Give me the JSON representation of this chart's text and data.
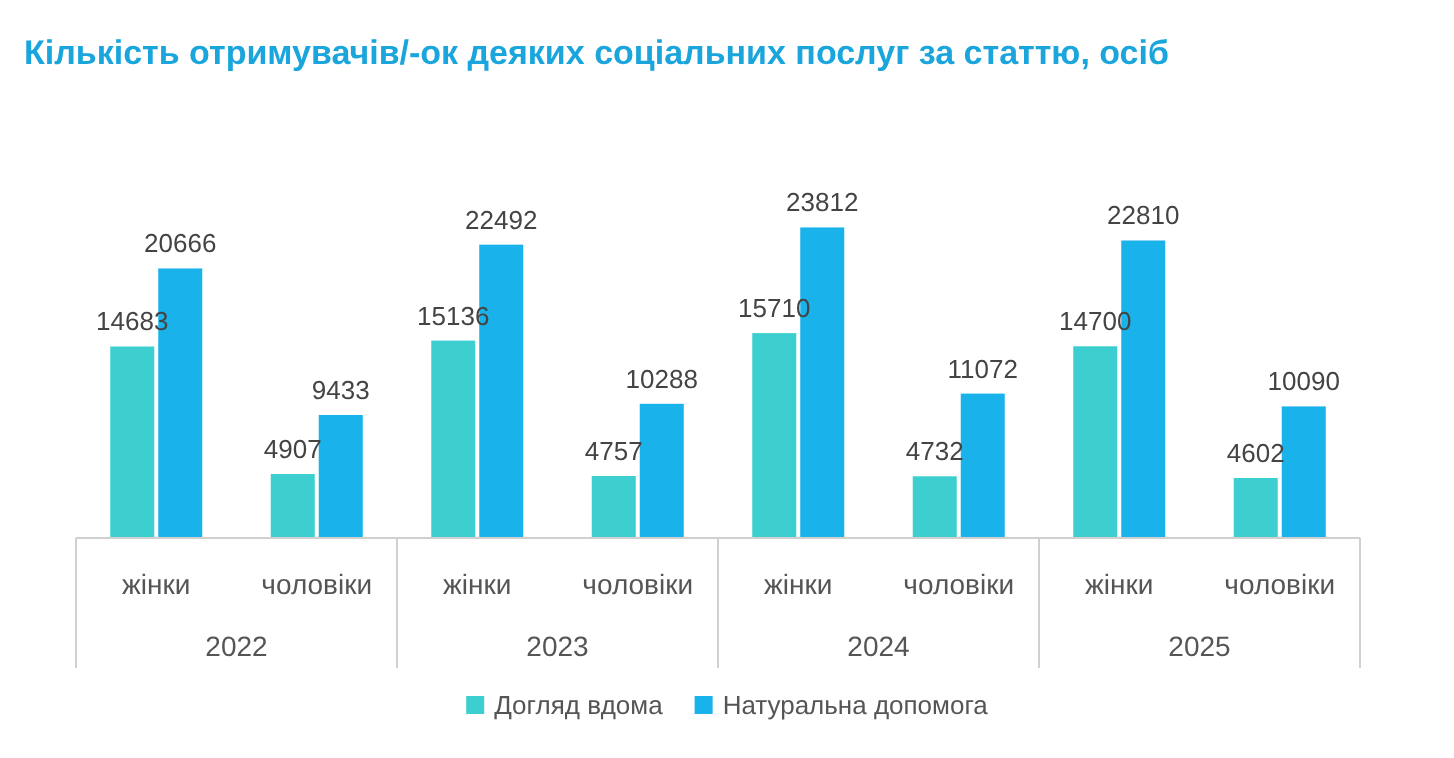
{
  "chart_data": [
    {
      "type": "bar",
      "title": "Кількість отримувачів/-ок деяких соціальних послуг за статтю, осіб",
      "xlabel": "2022",
      "categories": [
        "жінки",
        "чоловіки"
      ],
      "data_labels": true,
      "legend": "bottom",
      "series": [
        {
          "name": "Догляд вдома",
          "color": "#3dcfd0",
          "values": [
            14683,
            4907
          ]
        },
        {
          "name": "Натуральна допомога",
          "color": "#19b2ea",
          "values": [
            20666,
            9433
          ]
        }
      ]
    },
    {
      "type": "bar",
      "xlabel": "2023",
      "categories": [
        "жінки",
        "чоловіки"
      ],
      "data_labels": true,
      "series": [
        {
          "color": "#3dcfd0",
          "values": [
            15136,
            4757
          ]
        },
        {
          "color": "#19b2ea",
          "values": [
            22492,
            10288
          ]
        }
      ]
    },
    {
      "type": "bar",
      "xlabel": "2024",
      "categories": [
        "жінки",
        "чоловіки"
      ],
      "data_labels": true,
      "series": [
        {
          "color": "#3dcfd0",
          "values": [
            15710,
            4732
          ]
        },
        {
          "color": "#19b2ea",
          "values": [
            23812,
            11072
          ]
        }
      ]
    },
    {
      "type": "bar",
      "xlabel": "2025",
      "categories": [
        "жінки",
        "чоловіки"
      ],
      "data_labels": true,
      "series": [
        {
          "color": "#3dcfd0",
          "values": [
            14700,
            4602
          ]
        },
        {
          "color": "#19b2ea",
          "values": [
            22810,
            10090
          ]
        }
      ]
    }
  ]
}
